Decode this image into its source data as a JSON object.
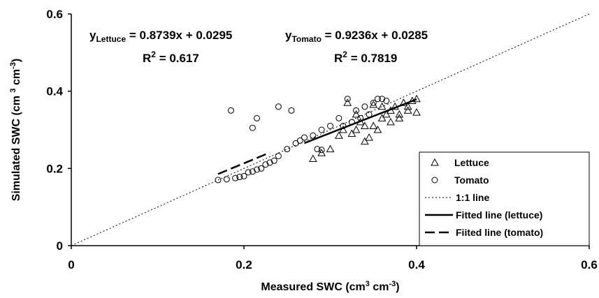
{
  "chart_data": {
    "type": "scatter",
    "x_label": [
      {
        "text": "Measured SWC (cm"
      },
      {
        "sup": "3"
      },
      {
        "text": " cm"
      },
      {
        "sup": "-3"
      },
      {
        "text": ")"
      }
    ],
    "y_label": [
      {
        "text": "Simulated SWC (cm "
      },
      {
        "sup": "3"
      },
      {
        "text": " cm"
      },
      {
        "sup": "-3"
      },
      {
        "text": ")"
      }
    ],
    "annotations": [
      {
        "base": "y",
        "sub": "Lettuce",
        "rest": " = 0.8739x + 0.0295"
      },
      {
        "base": "R",
        "sup": "2",
        "rest": " = 0.617"
      },
      {
        "base": "y",
        "sub": "Tomato",
        "rest": " = 0.9236x + 0.0285"
      },
      {
        "base": "R",
        "sup": "2",
        "rest": " = 0.7819"
      }
    ],
    "xlim": [
      0,
      0.6
    ],
    "ylim": [
      0,
      0.6
    ],
    "xticks": [
      0,
      0.2,
      0.4,
      0.6
    ],
    "yticks": [
      0,
      0.2,
      0.4,
      0.6
    ],
    "grid": false,
    "legend": "lower right",
    "series": [
      {
        "name": "Lettuce",
        "marker": "triangle",
        "color": "#000000",
        "x": [
          0.28,
          0.29,
          0.3,
          0.31,
          0.315,
          0.32,
          0.325,
          0.33,
          0.335,
          0.34,
          0.345,
          0.35,
          0.355,
          0.36,
          0.365,
          0.37,
          0.375,
          0.38,
          0.385,
          0.39,
          0.395,
          0.4,
          0.4,
          0.35,
          0.36,
          0.37,
          0.38,
          0.39,
          0.33,
          0.34
        ],
        "y": [
          0.225,
          0.24,
          0.25,
          0.285,
          0.3,
          0.37,
          0.29,
          0.3,
          0.32,
          0.27,
          0.28,
          0.31,
          0.3,
          0.33,
          0.34,
          0.35,
          0.36,
          0.33,
          0.37,
          0.36,
          0.375,
          0.38,
          0.345,
          0.365,
          0.36,
          0.32,
          0.34,
          0.35,
          0.34,
          0.31
        ]
      },
      {
        "name": "Tomato",
        "marker": "circle",
        "color": "#000000",
        "x": [
          0.185,
          0.21,
          0.215,
          0.24,
          0.255,
          0.17,
          0.18,
          0.19,
          0.195,
          0.2,
          0.205,
          0.21,
          0.215,
          0.22,
          0.225,
          0.23,
          0.235,
          0.24,
          0.25,
          0.26,
          0.265,
          0.27,
          0.28,
          0.285,
          0.29,
          0.29,
          0.3,
          0.31,
          0.315,
          0.32,
          0.325,
          0.33,
          0.34,
          0.35,
          0.355,
          0.36,
          0.365,
          0.345,
          0.335
        ],
        "y": [
          0.35,
          0.305,
          0.33,
          0.36,
          0.35,
          0.17,
          0.172,
          0.175,
          0.178,
          0.18,
          0.19,
          0.192,
          0.197,
          0.2,
          0.21,
          0.215,
          0.22,
          0.232,
          0.25,
          0.265,
          0.272,
          0.28,
          0.285,
          0.25,
          0.248,
          0.3,
          0.31,
          0.33,
          0.31,
          0.38,
          0.32,
          0.35,
          0.36,
          0.37,
          0.38,
          0.38,
          0.375,
          0.34,
          0.33
        ]
      },
      {
        "name": "1:1 line",
        "line": "dotted",
        "color": "#000000",
        "x": [
          0,
          0.6
        ],
        "y": [
          0,
          0.6
        ]
      },
      {
        "name": "Fitted line (lettuce)",
        "line": "solid",
        "color": "#000000",
        "x": [
          0.27,
          0.4
        ],
        "y": [
          0.2655,
          0.379
        ]
      },
      {
        "name": "Fiited line (tomato)",
        "line": "dashed",
        "color": "#000000",
        "x": [
          0.17,
          0.23
        ],
        "y": [
          0.1855,
          0.241
        ]
      }
    ]
  }
}
